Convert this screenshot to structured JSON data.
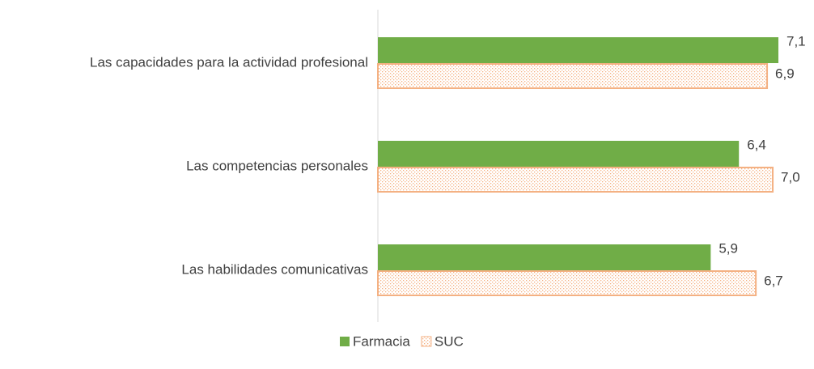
{
  "chart_data": {
    "type": "hbar",
    "categories": [
      "Las capacidades para la actividad profesional",
      "Las competencias personales",
      "Las habilidades comunicativas"
    ],
    "series": [
      {
        "name": "Farmacia",
        "color": "#70ad47",
        "values": [
          7.1,
          6.4,
          5.9
        ],
        "value_labels": [
          "7,1",
          "6,4",
          "5,9"
        ]
      },
      {
        "name": "SUC",
        "color": "#f4b183",
        "pattern": "dotted",
        "values": [
          6.9,
          7.0,
          6.7
        ],
        "value_labels": [
          "6,9",
          "7,0",
          "6,7"
        ]
      }
    ],
    "legend": "bottom"
  }
}
